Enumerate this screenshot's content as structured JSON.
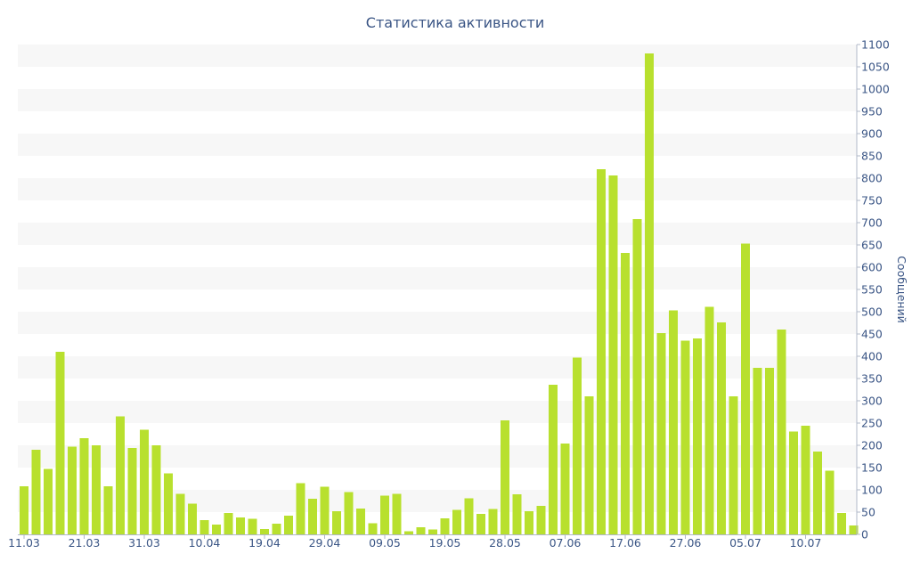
{
  "chart_data": {
    "type": "bar",
    "title": "Статистика активности",
    "ylabel": "Сообщений",
    "xlabel": "",
    "ylim": [
      0,
      1100
    ],
    "y_ticks": [
      0,
      50,
      100,
      150,
      200,
      250,
      300,
      350,
      400,
      450,
      500,
      550,
      600,
      650,
      700,
      750,
      800,
      850,
      900,
      950,
      1000,
      1050,
      1100
    ],
    "y_axis_side": "right",
    "grid": "alternating horizontal bands",
    "bar_color": "#b8e02e",
    "x_ticks": [
      {
        "index": 0,
        "label": "11.03"
      },
      {
        "index": 5,
        "label": "21.03"
      },
      {
        "index": 10,
        "label": "31.03"
      },
      {
        "index": 15,
        "label": "10.04"
      },
      {
        "index": 20,
        "label": "19.04"
      },
      {
        "index": 25,
        "label": "29.04"
      },
      {
        "index": 30,
        "label": "09.05"
      },
      {
        "index": 35,
        "label": "19.05"
      },
      {
        "index": 40,
        "label": "28.05"
      },
      {
        "index": 45,
        "label": "07.06"
      },
      {
        "index": 50,
        "label": "17.06"
      },
      {
        "index": 55,
        "label": "27.06"
      },
      {
        "index": 60,
        "label": "05.07"
      },
      {
        "index": 65,
        "label": "10.07"
      }
    ],
    "values": [
      108,
      190,
      147,
      410,
      197,
      216,
      200,
      108,
      265,
      194,
      235,
      200,
      137,
      91,
      69,
      32,
      22,
      48,
      38,
      35,
      12,
      24,
      42,
      115,
      80,
      107,
      52,
      95,
      58,
      25,
      87,
      91,
      7,
      16,
      11,
      36,
      55,
      81,
      46,
      57,
      256,
      90,
      52,
      64,
      336,
      204,
      397,
      310,
      820,
      806,
      632,
      708,
      1080,
      452,
      503,
      435,
      440,
      511,
      476,
      310,
      653,
      374,
      374,
      460,
      231,
      244,
      186,
      143,
      48,
      20
    ]
  }
}
